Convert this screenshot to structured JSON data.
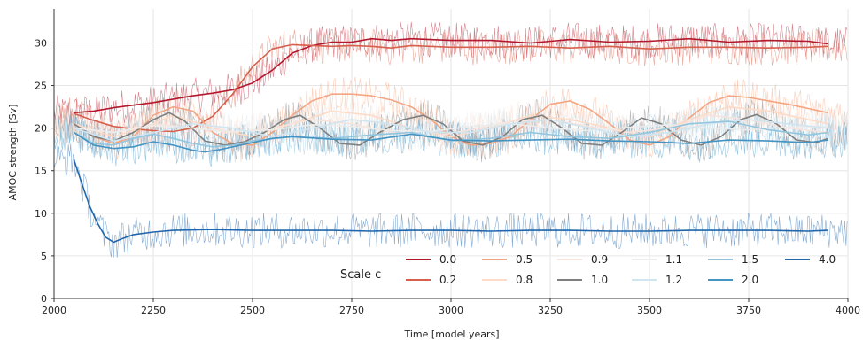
{
  "chart_data": {
    "type": "line",
    "xlabel": "Time [model years]",
    "ylabel": "AMOC strength [Sv]",
    "xlim": [
      2000,
      4000
    ],
    "ylim": [
      0,
      34
    ],
    "xticks": [
      2000,
      2250,
      2500,
      2750,
      3000,
      3250,
      3500,
      3750,
      4000
    ],
    "yticks": [
      0,
      5,
      10,
      15,
      20,
      25,
      30
    ],
    "grid": true,
    "legend": {
      "title": "Scale c",
      "placement": "bottom-right",
      "ncol": 6
    },
    "series": [
      {
        "name": "0.0",
        "color": "#b2182b",
        "x": [
          2050,
          2100,
          2150,
          2200,
          2250,
          2300,
          2350,
          2400,
          2450,
          2500,
          2550,
          2600,
          2650,
          2700,
          2750,
          2800,
          2850,
          2900,
          3000,
          3100,
          3200,
          3300,
          3400,
          3500,
          3600,
          3700,
          3800,
          3900,
          3950
        ],
        "values": [
          21.8,
          22.0,
          22.4,
          22.7,
          23.0,
          23.4,
          23.8,
          24.1,
          24.5,
          25.3,
          26.8,
          28.8,
          29.7,
          30.1,
          30.1,
          30.5,
          30.3,
          30.5,
          30.3,
          30.3,
          30.0,
          30.4,
          30.1,
          30.2,
          30.5,
          30.1,
          30.3,
          30.2,
          29.9
        ]
      },
      {
        "name": "0.2",
        "color": "#d6604d",
        "x": [
          2050,
          2100,
          2150,
          2200,
          2250,
          2300,
          2350,
          2400,
          2450,
          2500,
          2550,
          2600,
          2650,
          2700,
          2750,
          2800,
          2850,
          2900,
          3000,
          3100,
          3200,
          3300,
          3400,
          3500,
          3600,
          3700,
          3800,
          3900,
          3950
        ],
        "values": [
          21.7,
          20.9,
          20.2,
          19.9,
          19.7,
          19.6,
          20.0,
          21.4,
          24.0,
          27.2,
          29.3,
          29.8,
          29.7,
          29.6,
          29.7,
          29.6,
          29.4,
          29.7,
          29.5,
          29.5,
          29.6,
          29.4,
          29.6,
          29.3,
          29.5,
          29.5,
          29.4,
          29.5,
          29.6
        ]
      },
      {
        "name": "0.5",
        "color": "#f4a582",
        "x": [
          2050,
          2100,
          2150,
          2200,
          2250,
          2300,
          2350,
          2400,
          2450,
          2500,
          2550,
          2600,
          2650,
          2700,
          2750,
          2800,
          2850,
          2900,
          2950,
          3000,
          3050,
          3100,
          3150,
          3200,
          3250,
          3300,
          3350,
          3400,
          3450,
          3500,
          3550,
          3600,
          3650,
          3700,
          3750,
          3800,
          3850,
          3900,
          3950
        ],
        "values": [
          20.5,
          19.0,
          18.2,
          19.0,
          21.5,
          22.5,
          22.0,
          19.5,
          18.2,
          18.0,
          19.5,
          21.5,
          23.2,
          24.0,
          24.0,
          23.8,
          23.3,
          22.5,
          21.0,
          19.0,
          18.0,
          18.2,
          19.0,
          21.0,
          22.8,
          23.2,
          22.2,
          20.5,
          18.6,
          18.0,
          19.0,
          21.2,
          23.0,
          23.8,
          23.6,
          23.2,
          22.8,
          22.3,
          21.8
        ]
      },
      {
        "name": "0.8",
        "color": "#fddbc7",
        "x": [
          2050,
          2150,
          2250,
          2300,
          2400,
          2500,
          2600,
          2700,
          2800,
          2900,
          3000,
          3100,
          3200,
          3300,
          3400,
          3500,
          3600,
          3700,
          3800,
          3900,
          3950
        ],
        "values": [
          20.5,
          19.0,
          20.5,
          21.5,
          20.0,
          19.0,
          20.5,
          22.0,
          21.5,
          20.0,
          19.0,
          20.0,
          21.5,
          21.0,
          20.0,
          19.0,
          21.0,
          22.5,
          22.0,
          21.0,
          20.5
        ]
      },
      {
        "name": "0.9",
        "color": "#f7e4dc",
        "x": [
          2050,
          2150,
          2250,
          2350,
          2450,
          2550,
          2650,
          2750,
          2850,
          2950,
          3050,
          3150,
          3250,
          3350,
          3450,
          3550,
          3650,
          3750,
          3850,
          3950
        ],
        "values": [
          20.0,
          19.5,
          20.5,
          20.0,
          19.5,
          20.0,
          21.0,
          20.5,
          19.5,
          19.0,
          19.8,
          20.8,
          21.0,
          20.2,
          19.5,
          20.0,
          21.5,
          21.0,
          20.0,
          19.5
        ]
      },
      {
        "name": "1.0",
        "color": "#7f7f7f",
        "x": [
          2050,
          2100,
          2150,
          2200,
          2250,
          2290,
          2330,
          2380,
          2430,
          2480,
          2530,
          2580,
          2620,
          2670,
          2720,
          2770,
          2820,
          2880,
          2930,
          2980,
          3030,
          3080,
          3130,
          3180,
          3230,
          3280,
          3330,
          3380,
          3430,
          3480,
          3530,
          3580,
          3630,
          3680,
          3730,
          3770,
          3820,
          3870,
          3920,
          3950
        ],
        "values": [
          20.5,
          19.0,
          18.5,
          19.5,
          21.0,
          21.8,
          20.8,
          18.5,
          18.0,
          18.4,
          19.5,
          21.0,
          21.5,
          20.0,
          18.2,
          18.0,
          19.5,
          21.0,
          21.5,
          20.5,
          18.5,
          18.0,
          19.0,
          21.0,
          21.5,
          20.0,
          18.2,
          18.0,
          19.5,
          21.2,
          20.5,
          18.6,
          18.0,
          19.0,
          21.0,
          21.6,
          20.5,
          18.6,
          18.3,
          18.8
        ]
      },
      {
        "name": "1.1",
        "color": "#ececec",
        "x": [
          2050,
          2150,
          2250,
          2350,
          2450,
          2550,
          2650,
          2750,
          2850,
          2950,
          3050,
          3150,
          3250,
          3350,
          3450,
          3550,
          3650,
          3750,
          3850,
          3950
        ],
        "values": [
          20.0,
          19.5,
          20.3,
          20.0,
          19.6,
          19.8,
          20.4,
          20.2,
          19.7,
          19.6,
          20.2,
          20.5,
          20.0,
          19.7,
          20.1,
          20.4,
          20.0,
          19.8,
          20.1,
          20.2
        ]
      },
      {
        "name": "1.2",
        "color": "#d1e5f0",
        "x": [
          2050,
          2150,
          2250,
          2350,
          2450,
          2550,
          2650,
          2750,
          2850,
          2950,
          3050,
          3150,
          3250,
          3350,
          3450,
          3550,
          3650,
          3750,
          3850,
          3950
        ],
        "values": [
          20.0,
          18.5,
          19.5,
          20.5,
          20.0,
          19.0,
          20.0,
          21.0,
          20.5,
          19.5,
          19.5,
          20.5,
          21.0,
          20.0,
          19.0,
          19.5,
          20.5,
          21.0,
          20.5,
          20.0
        ]
      },
      {
        "name": "1.5",
        "color": "#92c5de",
        "x": [
          2050,
          2100,
          2150,
          2200,
          2250,
          2300,
          2350,
          2400,
          2450,
          2500,
          2600,
          2700,
          2800,
          2900,
          3000,
          3100,
          3200,
          3300,
          3400,
          3500,
          3600,
          3700,
          3800,
          3900,
          3950
        ],
        "values": [
          19.5,
          18.2,
          18.0,
          18.8,
          19.3,
          18.8,
          18.2,
          17.8,
          18.0,
          18.5,
          19.0,
          18.8,
          19.2,
          19.5,
          18.5,
          18.8,
          19.5,
          19.0,
          18.8,
          19.5,
          20.5,
          20.8,
          19.8,
          19.2,
          19.5
        ]
      },
      {
        "name": "2.0",
        "color": "#4393c3",
        "x": [
          2050,
          2100,
          2150,
          2200,
          2250,
          2300,
          2350,
          2380,
          2420,
          2450,
          2500,
          2550,
          2600,
          2700,
          2800,
          2900,
          3000,
          3100,
          3200,
          3300,
          3400,
          3500,
          3600,
          3700,
          3800,
          3900,
          3950
        ],
        "values": [
          19.5,
          18.0,
          17.6,
          17.8,
          18.4,
          18.0,
          17.4,
          17.2,
          17.5,
          17.8,
          18.3,
          18.8,
          19.0,
          18.7,
          18.6,
          19.3,
          18.6,
          18.5,
          18.6,
          18.7,
          18.5,
          18.4,
          18.2,
          18.6,
          18.5,
          18.3,
          18.6
        ]
      },
      {
        "name": "4.0",
        "color": "#2166ac",
        "x": [
          2050,
          2070,
          2090,
          2110,
          2130,
          2150,
          2170,
          2200,
          2250,
          2300,
          2400,
          2500,
          2600,
          2700,
          2800,
          2900,
          3000,
          3100,
          3200,
          3300,
          3400,
          3500,
          3600,
          3700,
          3800,
          3900,
          3950
        ],
        "values": [
          16.3,
          13.5,
          10.8,
          8.8,
          7.2,
          6.6,
          7.0,
          7.5,
          7.8,
          8.0,
          8.1,
          8.0,
          8.0,
          8.0,
          7.9,
          8.0,
          8.0,
          7.9,
          8.0,
          8.0,
          7.9,
          7.9,
          8.0,
          8.0,
          8.0,
          7.9,
          8.0
        ]
      }
    ]
  }
}
